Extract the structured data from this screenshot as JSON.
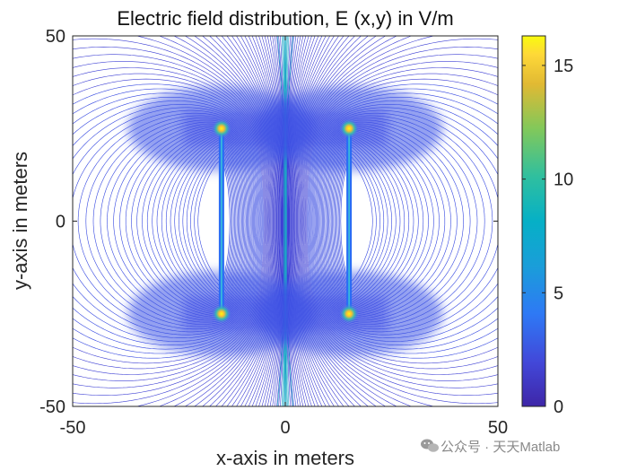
{
  "chart_data": {
    "type": "contour",
    "title": "Electric field distribution, E (x,y) in V/m",
    "xlabel": "x-axis in meters",
    "ylabel": "y-axis in meters",
    "xlim": [
      -50,
      50
    ],
    "ylim": [
      -50,
      50
    ],
    "xticks": [
      -50,
      0,
      50
    ],
    "xtick_labels": [
      "-50",
      "0",
      "50"
    ],
    "yticks": [
      -50,
      0,
      50
    ],
    "ytick_labels": [
      "-50",
      "0",
      "50"
    ],
    "colorbar": {
      "range": [
        0,
        16.3
      ],
      "ticks": [
        0,
        5,
        10,
        15
      ],
      "tick_labels": [
        "0",
        "5",
        "10",
        "15"
      ],
      "colormap": "parula"
    },
    "plates": [
      {
        "x": -15,
        "y_from": -25,
        "y_to": 25,
        "name": "left plate"
      },
      {
        "x": 15,
        "y_from": -25,
        "y_to": 25,
        "name": "right plate"
      }
    ],
    "peak_points": [
      {
        "x": -15,
        "y": 25,
        "value": 16
      },
      {
        "x": 15,
        "y": 25,
        "value": 16
      },
      {
        "x": -15,
        "y": -25,
        "value": 16
      },
      {
        "x": 15,
        "y": -25,
        "value": 16
      }
    ]
  },
  "watermark": {
    "text": "公众号 · 天天Matlab",
    "icon": "wechat-icon"
  }
}
